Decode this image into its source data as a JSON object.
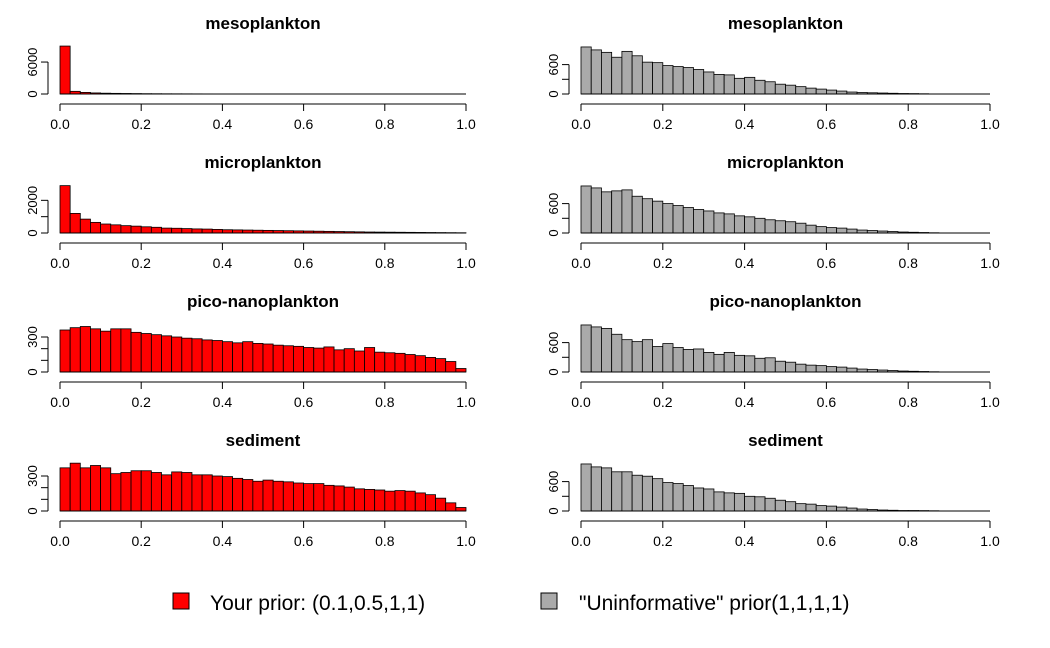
{
  "colors": {
    "prior_user": "#ff0000",
    "prior_uninformative": "#aaaaaa",
    "border": "#000000"
  },
  "legend": {
    "items": [
      {
        "label": "Your prior: (0.1,0.5,1,1)",
        "color": "#ff0000"
      },
      {
        "label": "\"Uninformative\" prior(1,1,1,1)",
        "color": "#aaaaaa"
      }
    ]
  },
  "chart_data": [
    {
      "type": "bar",
      "title": "mesoplankton",
      "column": "left",
      "row": 0,
      "color": "#ff0000",
      "xlim": [
        0,
        1
      ],
      "ylim": [
        0,
        9200
      ],
      "xticks": [
        0.0,
        0.2,
        0.4,
        0.6,
        0.8,
        1.0
      ],
      "xtick_labels": [
        "0.0",
        "0.2",
        "0.4",
        "0.6",
        "0.8",
        "1.0"
      ],
      "yticks": [
        0,
        6000
      ],
      "ytick_labels": [
        "0",
        "6000"
      ],
      "bin_width": 0.025,
      "values": [
        9000,
        500,
        300,
        200,
        150,
        120,
        100,
        80,
        60,
        50,
        40,
        35,
        30,
        25,
        20,
        18,
        16,
        14,
        12,
        10,
        9,
        8,
        7,
        6,
        5,
        4,
        3,
        3,
        2,
        2,
        2,
        1,
        1,
        1,
        1,
        0,
        0,
        0,
        0,
        0
      ]
    },
    {
      "type": "bar",
      "title": "mesoplankton",
      "column": "right",
      "row": 0,
      "color": "#aaaaaa",
      "xlim": [
        0,
        1
      ],
      "ylim": [
        0,
        1000
      ],
      "xticks": [
        0.0,
        0.2,
        0.4,
        0.6,
        0.8,
        1.0
      ],
      "xtick_labels": [
        "0.0",
        "0.2",
        "0.4",
        "0.6",
        "0.8",
        "1.0"
      ],
      "yticks": [
        0,
        300,
        600
      ],
      "ytick_labels": [
        "0",
        "",
        "600"
      ],
      "bin_width": 0.025,
      "values": [
        960,
        900,
        850,
        750,
        870,
        780,
        650,
        640,
        580,
        560,
        540,
        500,
        450,
        400,
        390,
        320,
        340,
        280,
        250,
        200,
        180,
        150,
        120,
        100,
        80,
        60,
        40,
        30,
        25,
        20,
        15,
        10,
        8,
        5,
        0,
        0,
        0,
        0,
        0,
        0
      ]
    },
    {
      "type": "bar",
      "title": "microplankton",
      "column": "left",
      "row": 1,
      "color": "#ff0000",
      "xlim": [
        0,
        1
      ],
      "ylim": [
        0,
        3000
      ],
      "xticks": [
        0.0,
        0.2,
        0.4,
        0.6,
        0.8,
        1.0
      ],
      "xtick_labels": [
        "0.0",
        "0.2",
        "0.4",
        "0.6",
        "0.8",
        "1.0"
      ],
      "yticks": [
        0,
        1000,
        2000
      ],
      "ytick_labels": [
        "0",
        "",
        "2000"
      ],
      "bin_width": 0.025,
      "values": [
        2900,
        1200,
        850,
        650,
        550,
        500,
        450,
        420,
        380,
        350,
        300,
        290,
        270,
        250,
        240,
        220,
        200,
        190,
        180,
        170,
        160,
        150,
        140,
        130,
        120,
        110,
        100,
        90,
        80,
        70,
        60,
        55,
        50,
        45,
        40,
        35,
        30,
        25,
        20,
        15
      ]
    },
    {
      "type": "bar",
      "title": "microplankton",
      "column": "right",
      "row": 1,
      "color": "#aaaaaa",
      "xlim": [
        0,
        1
      ],
      "ylim": [
        0,
        1000
      ],
      "xticks": [
        0.0,
        0.2,
        0.4,
        0.6,
        0.8,
        1.0
      ],
      "xtick_labels": [
        "0.0",
        "0.2",
        "0.4",
        "0.6",
        "0.8",
        "1.0"
      ],
      "yticks": [
        0,
        300,
        600
      ],
      "ytick_labels": [
        "0",
        "",
        "600"
      ],
      "bin_width": 0.025,
      "values": [
        960,
        920,
        840,
        860,
        880,
        750,
        700,
        650,
        600,
        560,
        520,
        480,
        450,
        410,
        390,
        350,
        330,
        300,
        270,
        250,
        230,
        200,
        160,
        130,
        110,
        100,
        80,
        60,
        50,
        40,
        30,
        20,
        15,
        10,
        5,
        0,
        0,
        0,
        0,
        0
      ]
    },
    {
      "type": "bar",
      "title": "pico-nanoplankton",
      "column": "left",
      "row": 2,
      "color": "#ff0000",
      "xlim": [
        0,
        1
      ],
      "ylim": [
        0,
        420
      ],
      "xticks": [
        0.0,
        0.2,
        0.4,
        0.6,
        0.8,
        1.0
      ],
      "xtick_labels": [
        "0.0",
        "0.2",
        "0.4",
        "0.6",
        "0.8",
        "1.0"
      ],
      "yticks": [
        0,
        100,
        200,
        300
      ],
      "ytick_labels": [
        "0",
        "",
        "",
        "300"
      ],
      "bin_width": 0.025,
      "values": [
        360,
        380,
        390,
        370,
        350,
        370,
        370,
        340,
        330,
        320,
        310,
        300,
        290,
        285,
        275,
        270,
        260,
        250,
        260,
        245,
        240,
        230,
        225,
        220,
        210,
        205,
        215,
        190,
        200,
        180,
        210,
        170,
        165,
        160,
        150,
        140,
        125,
        115,
        90,
        30
      ]
    },
    {
      "type": "bar",
      "title": "pico-nanoplankton",
      "column": "right",
      "row": 2,
      "color": "#aaaaaa",
      "xlim": [
        0,
        1
      ],
      "ylim": [
        0,
        1000
      ],
      "xticks": [
        0.0,
        0.2,
        0.4,
        0.6,
        0.8,
        1.0
      ],
      "xtick_labels": [
        "0.0",
        "0.2",
        "0.4",
        "0.6",
        "0.8",
        "1.0"
      ],
      "yticks": [
        0,
        300,
        600
      ],
      "ytick_labels": [
        "0",
        "",
        "600"
      ],
      "bin_width": 0.025,
      "values": [
        960,
        920,
        890,
        770,
        660,
        620,
        660,
        520,
        580,
        500,
        460,
        470,
        400,
        360,
        400,
        340,
        330,
        280,
        290,
        220,
        200,
        160,
        140,
        130,
        110,
        100,
        80,
        60,
        50,
        40,
        30,
        20,
        15,
        10,
        5,
        0,
        0,
        0,
        0,
        0
      ]
    },
    {
      "type": "bar",
      "title": "sediment",
      "column": "left",
      "row": 3,
      "color": "#ff0000",
      "xlim": [
        0,
        1
      ],
      "ylim": [
        0,
        420
      ],
      "xticks": [
        0.0,
        0.2,
        0.4,
        0.6,
        0.8,
        1.0
      ],
      "xtick_labels": [
        "0.0",
        "0.2",
        "0.4",
        "0.6",
        "0.8",
        "1.0"
      ],
      "yticks": [
        0,
        100,
        200,
        300
      ],
      "ytick_labels": [
        "0",
        "",
        "",
        "300"
      ],
      "bin_width": 0.025,
      "values": [
        370,
        410,
        370,
        390,
        370,
        320,
        330,
        345,
        345,
        330,
        310,
        335,
        330,
        310,
        310,
        300,
        295,
        280,
        270,
        255,
        265,
        255,
        250,
        240,
        235,
        235,
        220,
        215,
        205,
        190,
        185,
        180,
        170,
        175,
        170,
        155,
        140,
        110,
        70,
        30
      ]
    },
    {
      "type": "bar",
      "title": "sediment",
      "column": "right",
      "row": 3,
      "color": "#aaaaaa",
      "xlim": [
        0,
        1
      ],
      "ylim": [
        0,
        1000
      ],
      "xticks": [
        0.0,
        0.2,
        0.4,
        0.6,
        0.8,
        1.0
      ],
      "xtick_labels": [
        "0.0",
        "0.2",
        "0.4",
        "0.6",
        "0.8",
        "1.0"
      ],
      "yticks": [
        0,
        300,
        600
      ],
      "ytick_labels": [
        "0",
        "",
        "600"
      ],
      "bin_width": 0.025,
      "values": [
        960,
        900,
        880,
        800,
        800,
        730,
        710,
        660,
        580,
        560,
        520,
        470,
        450,
        390,
        370,
        360,
        300,
        290,
        260,
        220,
        190,
        150,
        140,
        110,
        100,
        80,
        60,
        40,
        30,
        20,
        15,
        10,
        10,
        8,
        5,
        0,
        0,
        0,
        0,
        0
      ]
    }
  ]
}
